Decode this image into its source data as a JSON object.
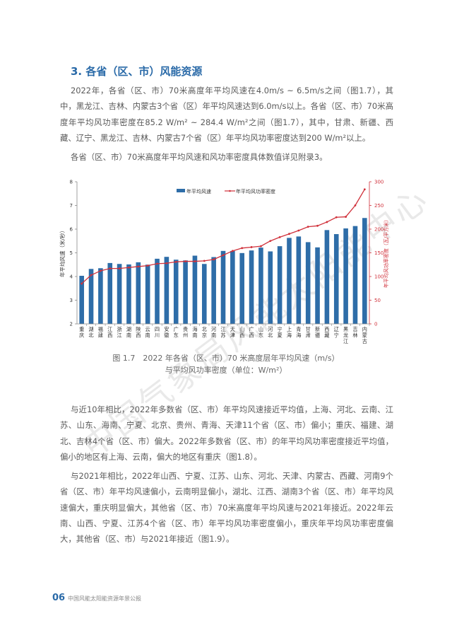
{
  "heading": "3. 各省（区、市）风能资源",
  "paragraphs_top": [
    "2022年，各省（区、市）70米高度年平均风速在4.0m/s ~ 6.5m/s之间（图1.7），其中，黑龙江、吉林、内蒙古3个省（区）年平均风速达到6.0m/s以上。各省（区、市）70米高度年平均风功率密度在85.2 W/m² ~ 284.4 W/m²之间（图1.7），其中，甘肃、新疆、西藏、辽宁、黑龙江、吉林、内蒙古7个省（区）年平均风功率密度达到200 W/m²以上。",
    "各省（区、市）70米高度年平均风速和风功率密度具体数值详见附录3。"
  ],
  "figure": {
    "caption_line1": "图 1.7　2022 年各省（区、市）70 米高度层年平均风速（m/s）",
    "caption_line2": "与平均风功率密度（单位：W/m²）"
  },
  "chart_data": {
    "type": "bar+line",
    "categories": [
      "重庆",
      "湖北",
      "福建",
      "江西",
      "浙江",
      "湖南",
      "陕西",
      "云南",
      "四川",
      "安徽",
      "广东",
      "贵州",
      "海南",
      "北京",
      "河南",
      "江苏",
      "天津",
      "山西",
      "广西",
      "山东",
      "河北",
      "宁夏",
      "上海",
      "青海",
      "甘肃",
      "新疆",
      "西藏",
      "辽宁",
      "黑龙江",
      "吉林",
      "内蒙古"
    ],
    "series": [
      {
        "name": "年平均风速",
        "type": "bar",
        "axis": "left",
        "color": "#2e6da8",
        "values": [
          4.03,
          4.32,
          4.35,
          4.57,
          4.53,
          4.51,
          4.6,
          4.5,
          4.75,
          4.83,
          4.71,
          4.68,
          4.88,
          4.53,
          4.82,
          5.08,
          5.08,
          4.99,
          5.1,
          5.22,
          5.06,
          5.28,
          5.63,
          5.69,
          5.45,
          5.23,
          5.96,
          5.79,
          6.03,
          6.13,
          6.47
        ]
      },
      {
        "name": "年平均风功率密度",
        "type": "line",
        "axis": "right",
        "color": "#d0303a",
        "values": [
          85,
          103,
          112,
          117,
          117,
          119,
          121,
          123,
          127,
          128,
          131,
          132,
          132,
          133,
          136,
          145,
          154,
          160,
          162,
          164,
          175,
          183,
          190,
          197,
          205,
          207,
          215,
          225,
          226,
          250,
          284
        ]
      }
    ],
    "ylabel": "年平均风速（米/秒）",
    "y2label": "年平均风功率密度（瓦/平方米）",
    "ylim": [
      2,
      8
    ],
    "y2lim": [
      0,
      300
    ],
    "yticks": [
      "2",
      "3",
      "4",
      "5",
      "6",
      "7",
      "8"
    ],
    "y2ticks": [
      "0",
      "50",
      "100",
      "150",
      "200",
      "250",
      "300"
    ],
    "legend_position": "top-center",
    "grid": false
  },
  "paragraphs_bottom": [
    "与近10年相比，2022年多数省（区、市）年平均风速接近平均值，上海、河北、云南、江苏、山东、海南、宁夏、北京、贵州、青海、天津11个省（区、市）偏小；重庆、福建、湖北、吉林4个省（区、市）偏大。2022年多数省（区、市）的年平均风功率密度接近平均值，偏小的地区有上海、云南，偏大的地区有重庆（图1.8）。",
    "与2021年相比，2022年山西、宁夏、江苏、山东、河北、天津、内蒙古、西藏、河南9个省（区、市）年平均风速偏小，云南明显偏小，湖北、江西、湖南3个省（区、市）年平均风速偏大，重庆明显偏大，其他省（区、市）70米高度年平均风速与2021年接近。2022年云南、山西、宁夏、江苏4个省（区、市）年平均风功率密度偏小，重庆年平均风功率密度偏大，其他省（区、市）与2021年接近（图1.9）。"
  ],
  "footer": {
    "page_number": "06",
    "publication": "中国风能太阳能资源年景公报"
  },
  "watermark": "中国气象局风能太阳能中心"
}
